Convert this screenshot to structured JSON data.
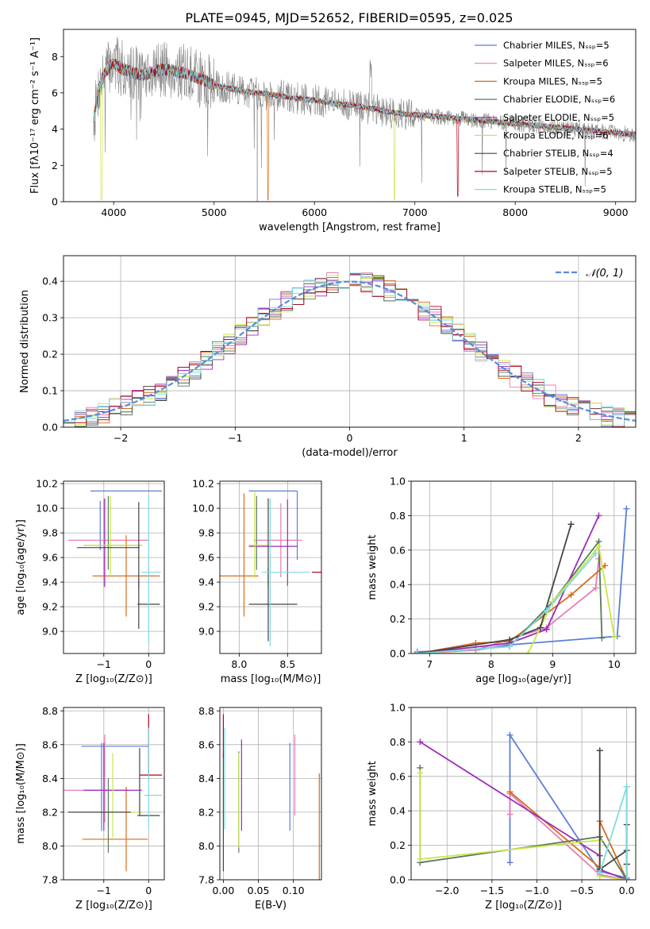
{
  "figure_title": "PLATE=0945, MJD=52652, FIBERID=0595, z=0.025",
  "colors": {
    "chabrier_miles": "#5b7fd9",
    "salpeter_miles": "#e67eb7",
    "kroupa_miles": "#d96b19",
    "chabrier_elodie": "#5a7a5a",
    "salpeter_elodie": "#9a2db8",
    "kroupa_elodie": "#c8e64a",
    "chabrier_stelib": "#444444",
    "salpeter_stelib": "#b3001b",
    "kroupa_stelib": "#7fdde0",
    "data_gray": "#888888",
    "normal_curve": "#5b8bd9",
    "grid": "#b0b0b0"
  },
  "chart_data": [
    {
      "id": "spectrum",
      "type": "line",
      "xlabel": "wavelength [Angstrom, rest frame]",
      "ylabel": "Flux [fλ10⁻¹⁷ erg cm⁻² s⁻¹ A⁻¹]",
      "xlim": [
        3500,
        9200
      ],
      "ylim": [
        0,
        9.5
      ],
      "xticks": [
        4000,
        5000,
        6000,
        7000,
        8000,
        9000
      ],
      "yticks": [
        0,
        2,
        4,
        6,
        8
      ],
      "grid": false,
      "legend_position": "top-right",
      "continuum": {
        "x": [
          3800,
          3850,
          3900,
          3950,
          4000,
          4100,
          4200,
          4300,
          4400,
          4500,
          4600,
          4700,
          4800,
          4900,
          5000,
          5200,
          5400,
          5600,
          5800,
          6000,
          6200,
          6400,
          6600,
          6800,
          7000,
          7200,
          7400,
          7600,
          7800,
          8000,
          8200,
          8400,
          8600,
          8800,
          9000,
          9200
        ],
        "y": [
          4.5,
          6.2,
          7.0,
          7.4,
          7.6,
          7.3,
          7.1,
          7.0,
          7.2,
          7.3,
          7.2,
          7.1,
          6.9,
          6.7,
          6.4,
          6.2,
          6.0,
          5.9,
          5.7,
          5.6,
          5.4,
          5.3,
          5.1,
          4.9,
          4.8,
          4.7,
          4.6,
          4.5,
          4.4,
          4.3,
          4.2,
          4.1,
          4.0,
          3.9,
          3.8,
          3.7
        ]
      },
      "series": [
        {
          "name": "Chabrier MILES, Nₛₛₚ=5",
          "color_key": "chabrier_miles"
        },
        {
          "name": "Salpeter MILES, Nₛₛₚ=6",
          "color_key": "salpeter_miles"
        },
        {
          "name": "Kroupa MILES, Nₛₛₚ=5",
          "color_key": "kroupa_miles"
        },
        {
          "name": "Chabrier ELODIE, Nₛₛₚ=6",
          "color_key": "chabrier_elodie"
        },
        {
          "name": "Salpeter ELODIE, Nₛₛₚ=5",
          "color_key": "salpeter_elodie"
        },
        {
          "name": "Kroupa ELODIE, Nₛₛₚ=6",
          "color_key": "kroupa_elodie"
        },
        {
          "name": "Chabrier STELIB, Nₛₛₚ=4",
          "color_key": "chabrier_stelib"
        },
        {
          "name": "Salpeter STELIB, Nₛₛₚ=5",
          "color_key": "salpeter_stelib"
        },
        {
          "name": "Kroupa STELIB, Nₛₛₚ=5",
          "color_key": "kroupa_stelib"
        }
      ]
    },
    {
      "id": "residuals",
      "type": "line",
      "xlabel": "(data-model)/error",
      "ylabel": "Normed distribution",
      "xlim": [
        -2.5,
        2.5
      ],
      "ylim": [
        0,
        0.47
      ],
      "xticks": [
        -2,
        -1,
        0,
        1,
        2
      ],
      "yticks": [
        0.0,
        0.1,
        0.2,
        0.3,
        0.4
      ],
      "grid": true,
      "legend_position": "top-right",
      "normal_label": "𝒩(0, 1)",
      "bin_width": 0.1
    },
    {
      "id": "age_vs_z",
      "type": "scatter",
      "xlabel": "Z [log₁₀(Z/Z⊙)]",
      "ylabel": "age  [log₁₀(age/yr)]",
      "xlim": [
        -1.9,
        0.35
      ],
      "ylim": [
        8.82,
        10.22
      ],
      "xticks": [
        -1,
        0
      ],
      "yticks": [
        9.0,
        9.2,
        9.4,
        9.6,
        9.8,
        10.0,
        10.2
      ],
      "grid": true,
      "points": [
        {
          "color_key": "chabrier_miles",
          "x": -0.5,
          "xerr": 0.8,
          "y": 10.14,
          "yerr": 0.0
        },
        {
          "color_key": "chabrier_miles",
          "x": -1.08,
          "xerr": 0.0,
          "y": 9.86,
          "yerr": 0.2
        },
        {
          "color_key": "salpeter_miles",
          "x": -0.9,
          "xerr": 0.9,
          "y": 9.74,
          "yerr": 0.0
        },
        {
          "color_key": "salpeter_miles",
          "x": -1.0,
          "xerr": 0.0,
          "y": 9.72,
          "yerr": 0.35
        },
        {
          "color_key": "kroupa_miles",
          "x": -0.5,
          "xerr": 0.75,
          "y": 9.45,
          "yerr": 0.0
        },
        {
          "color_key": "kroupa_miles",
          "x": -0.5,
          "xerr": 0.0,
          "y": 9.45,
          "yerr": 0.33
        },
        {
          "color_key": "chabrier_elodie",
          "x": -0.9,
          "xerr": 0.0,
          "y": 9.8,
          "yerr": 0.3
        },
        {
          "color_key": "salpeter_elodie",
          "x": -0.98,
          "xerr": 0.0,
          "y": 9.72,
          "yerr": 0.36
        },
        {
          "color_key": "salpeter_elodie",
          "x": -0.8,
          "xerr": 0.65,
          "y": 9.7,
          "yerr": 0.0
        },
        {
          "color_key": "kroupa_elodie",
          "x": -0.85,
          "xerr": 0.0,
          "y": 9.78,
          "yerr": 0.32
        },
        {
          "color_key": "kroupa_elodie",
          "x": -0.8,
          "xerr": 0.65,
          "y": 9.7,
          "yerr": 0.0
        },
        {
          "color_key": "chabrier_stelib",
          "x": -0.22,
          "xerr": 0.0,
          "y": 9.7,
          "yerr": 0.35
        },
        {
          "color_key": "chabrier_stelib",
          "x": -0.9,
          "xerr": 0.7,
          "y": 9.68,
          "yerr": 0.0
        },
        {
          "color_key": "chabrier_stelib",
          "x": 0.0,
          "xerr": 0.25,
          "y": 9.22,
          "yerr": 0.0
        },
        {
          "color_key": "chabrier_stelib",
          "x": -0.22,
          "xerr": 0.0,
          "y": 9.22,
          "yerr": 0.2
        },
        {
          "color_key": "kroupa_stelib",
          "x": 0.0,
          "xerr": 0.0,
          "y": 9.5,
          "yerr": 0.6
        },
        {
          "color_key": "kroupa_stelib",
          "x": 0.05,
          "xerr": 0.22,
          "y": 9.48,
          "yerr": 0.0
        }
      ]
    },
    {
      "id": "age_vs_mass",
      "type": "scatter",
      "xlabel": "mass [log₁₀(M/M⊙)]",
      "ylabel": "",
      "xlim": [
        7.8,
        8.85
      ],
      "ylim": [
        8.82,
        10.22
      ],
      "xticks": [
        8.0,
        8.5
      ],
      "yticks": [
        9.0,
        9.2,
        9.4,
        9.6,
        9.8,
        10.0,
        10.2
      ],
      "grid": true,
      "points": [
        {
          "color_key": "chabrier_miles",
          "x": 8.35,
          "xerr": 0.25,
          "y": 10.14,
          "yerr": 0.0
        },
        {
          "color_key": "chabrier_miles",
          "x": 8.6,
          "xerr": 0.0,
          "y": 9.86,
          "yerr": 0.28
        },
        {
          "color_key": "salpeter_miles",
          "x": 8.4,
          "xerr": 0.25,
          "y": 9.74,
          "yerr": 0.0
        },
        {
          "color_key": "salpeter_miles",
          "x": 8.43,
          "xerr": 0.0,
          "y": 9.74,
          "yerr": 0.3
        },
        {
          "color_key": "kroupa_miles",
          "x": 8.0,
          "xerr": 0.2,
          "y": 9.45,
          "yerr": 0.0
        },
        {
          "color_key": "kroupa_miles",
          "x": 8.05,
          "xerr": 0.0,
          "y": 9.62,
          "yerr": 0.5
        },
        {
          "color_key": "chabrier_elodie",
          "x": 8.18,
          "xerr": 0.0,
          "y": 9.8,
          "yerr": 0.3
        },
        {
          "color_key": "salpeter_elodie",
          "x": 8.5,
          "xerr": 0.0,
          "y": 9.72,
          "yerr": 0.35
        },
        {
          "color_key": "salpeter_elodie",
          "x": 8.35,
          "xerr": 0.25,
          "y": 9.69,
          "yerr": 0.0
        },
        {
          "color_key": "kroupa_elodie",
          "x": 8.16,
          "xerr": 0.0,
          "y": 9.78,
          "yerr": 0.35
        },
        {
          "color_key": "kroupa_elodie",
          "x": 8.2,
          "xerr": 0.1,
          "y": 9.7,
          "yerr": 0.0
        },
        {
          "color_key": "chabrier_stelib",
          "x": 8.3,
          "xerr": 0.0,
          "y": 9.72,
          "yerr": 0.36
        },
        {
          "color_key": "chabrier_stelib",
          "x": 8.35,
          "xerr": 0.25,
          "y": 9.22,
          "yerr": 0.0
        },
        {
          "color_key": "chabrier_stelib",
          "x": 8.3,
          "xerr": 0.0,
          "y": 9.22,
          "yerr": 0.3
        },
        {
          "color_key": "salpeter_stelib",
          "x": 8.8,
          "xerr": 0.05,
          "y": 9.48,
          "yerr": 0.0
        },
        {
          "color_key": "kroupa_stelib",
          "x": 8.48,
          "xerr": 0.25,
          "y": 9.48,
          "yerr": 0.0
        },
        {
          "color_key": "kroupa_stelib",
          "x": 8.32,
          "xerr": 0.0,
          "y": 9.48,
          "yerr": 0.6
        }
      ]
    },
    {
      "id": "weight_vs_age",
      "type": "line",
      "xlabel": "age  [log₁₀(age/yr)]",
      "ylabel": "mass weight",
      "xlim": [
        6.7,
        10.35
      ],
      "ylim": [
        0.0,
        1.0
      ],
      "xticks": [
        7,
        8,
        9,
        10
      ],
      "yticks": [
        0.0,
        0.2,
        0.4,
        0.6,
        0.8,
        1.0
      ],
      "grid": true,
      "series": [
        {
          "color_key": "chabrier_miles",
          "x": [
            6.8,
            7.75,
            8.3,
            10.05,
            10.2
          ],
          "y": [
            0.01,
            0.02,
            0.05,
            0.1,
            0.84
          ]
        },
        {
          "color_key": "salpeter_miles",
          "x": [
            6.8,
            7.75,
            8.9,
            9.7,
            9.75
          ],
          "y": [
            0.0,
            0.02,
            0.15,
            0.38,
            0.55
          ]
        },
        {
          "color_key": "kroupa_miles",
          "x": [
            6.8,
            7.75,
            8.3,
            9.3,
            9.85
          ],
          "y": [
            0.0,
            0.06,
            0.07,
            0.34,
            0.51
          ]
        },
        {
          "color_key": "chabrier_elodie",
          "x": [
            6.8,
            8.3,
            9.0,
            9.75,
            9.8
          ],
          "y": [
            0.0,
            0.04,
            0.3,
            0.65,
            0.09
          ]
        },
        {
          "color_key": "salpeter_elodie",
          "x": [
            6.8,
            8.3,
            8.9,
            9.75
          ],
          "y": [
            0.0,
            0.06,
            0.14,
            0.8
          ]
        },
        {
          "color_key": "kroupa_elodie",
          "x": [
            6.8,
            8.6,
            9.0,
            9.75,
            10.0
          ],
          "y": [
            0.0,
            0.0,
            0.3,
            0.62,
            0.1
          ]
        },
        {
          "color_key": "chabrier_stelib",
          "x": [
            6.8,
            8.3,
            8.8,
            9.3
          ],
          "y": [
            0.0,
            0.08,
            0.15,
            0.75
          ]
        },
        {
          "color_key": "kroupa_stelib",
          "x": [
            6.8,
            8.3,
            8.9,
            9.7
          ],
          "y": [
            0.0,
            0.04,
            0.25,
            0.58
          ]
        }
      ]
    },
    {
      "id": "mass_vs_z",
      "type": "scatter",
      "xlabel": "Z [log₁₀(Z/Z⊙)]",
      "ylabel": "mass [log₁₀(M/M⊙)]",
      "xlim": [
        -1.9,
        0.35
      ],
      "ylim": [
        7.8,
        8.82
      ],
      "xticks": [
        -1,
        0
      ],
      "yticks": [
        7.8,
        8.0,
        8.2,
        8.4,
        8.6,
        8.8
      ],
      "grid": true,
      "points": [
        {
          "color_key": "chabrier_miles",
          "x": -0.75,
          "xerr": 0.75,
          "y": 8.59,
          "yerr": 0.0
        },
        {
          "color_key": "chabrier_miles",
          "x": -1.05,
          "xerr": 0.0,
          "y": 8.35,
          "yerr": 0.26
        },
        {
          "color_key": "salpeter_miles",
          "x": -1.2,
          "xerr": 0.75,
          "y": 8.33,
          "yerr": 0.0
        },
        {
          "color_key": "salpeter_miles",
          "x": -0.98,
          "xerr": 0.0,
          "y": 8.4,
          "yerr": 0.26
        },
        {
          "color_key": "kroupa_miles",
          "x": -0.75,
          "xerr": 0.73,
          "y": 8.04,
          "yerr": 0.0
        },
        {
          "color_key": "kroupa_miles",
          "x": -0.5,
          "xerr": 0.0,
          "y": 8.1,
          "yerr": 0.25
        },
        {
          "color_key": "chabrier_elodie",
          "x": -0.9,
          "xerr": 0.0,
          "y": 8.18,
          "yerr": 0.22
        },
        {
          "color_key": "salpeter_elodie",
          "x": -1.0,
          "xerr": 0.0,
          "y": 8.35,
          "yerr": 0.26
        },
        {
          "color_key": "salpeter_elodie",
          "x": -0.8,
          "xerr": 0.65,
          "y": 8.33,
          "yerr": 0.0
        },
        {
          "color_key": "kroupa_elodie",
          "x": -0.8,
          "xerr": 0.0,
          "y": 8.3,
          "yerr": 0.25
        },
        {
          "color_key": "kroupa_elodie",
          "x": -0.8,
          "xerr": 0.65,
          "y": 8.2,
          "yerr": 0.0
        },
        {
          "color_key": "chabrier_stelib",
          "x": -0.2,
          "xerr": 0.0,
          "y": 8.38,
          "yerr": 0.2
        },
        {
          "color_key": "chabrier_stelib",
          "x": -1.1,
          "xerr": 0.7,
          "y": 8.2,
          "yerr": 0.0
        },
        {
          "color_key": "chabrier_stelib",
          "x": 0.0,
          "xerr": 0.25,
          "y": 8.18,
          "yerr": 0.0
        },
        {
          "color_key": "salpeter_stelib",
          "x": 0.0,
          "xerr": 0.0,
          "y": 8.6,
          "yerr": 0.18
        },
        {
          "color_key": "salpeter_stelib",
          "x": 0.05,
          "xerr": 0.25,
          "y": 8.42,
          "yerr": 0.0
        },
        {
          "color_key": "kroupa_stelib",
          "x": 0.0,
          "xerr": 0.0,
          "y": 8.4,
          "yerr": 0.3
        },
        {
          "color_key": "kroupa_stelib",
          "x": 0.1,
          "xerr": 0.2,
          "y": 8.3,
          "yerr": 0.0
        }
      ]
    },
    {
      "id": "mass_vs_ebv",
      "type": "scatter",
      "xlabel": "E(B-V)",
      "ylabel": "",
      "xlim": [
        -0.005,
        0.14
      ],
      "ylim": [
        7.8,
        8.82
      ],
      "xticks": [
        0.0,
        0.05,
        0.1
      ],
      "yticks": [
        7.8,
        8.0,
        8.2,
        8.4,
        8.6,
        8.8
      ],
      "grid": true,
      "points": [
        {
          "color_key": "chabrier_miles",
          "x": 0.095,
          "xerr": 0.0,
          "y": 8.35,
          "yerr": 0.26
        },
        {
          "color_key": "salpeter_miles",
          "x": 0.102,
          "xerr": 0.0,
          "y": 8.42,
          "yerr": 0.24
        },
        {
          "color_key": "kroupa_miles",
          "x": 0.137,
          "xerr": 0.0,
          "y": 8.1,
          "yerr": 0.33
        },
        {
          "color_key": "chabrier_elodie",
          "x": 0.022,
          "xerr": 0.0,
          "y": 8.26,
          "yerr": 0.3
        },
        {
          "color_key": "salpeter_elodie",
          "x": 0.026,
          "xerr": 0.0,
          "y": 8.36,
          "yerr": 0.27
        },
        {
          "color_key": "kroupa_elodie",
          "x": 0.022,
          "xerr": 0.0,
          "y": 8.27,
          "yerr": 0.28
        },
        {
          "color_key": "chabrier_stelib",
          "x": 0.0,
          "xerr": 0.0,
          "y": 8.2,
          "yerr": 0.35
        },
        {
          "color_key": "salpeter_stelib",
          "x": 0.0,
          "xerr": 0.0,
          "y": 8.65,
          "yerr": 0.13
        },
        {
          "color_key": "kroupa_stelib",
          "x": 0.002,
          "xerr": 0.0,
          "y": 8.4,
          "yerr": 0.3
        }
      ]
    },
    {
      "id": "weight_vs_z",
      "type": "line",
      "xlabel": "Z [log₁₀(Z/Z⊙)]",
      "ylabel": "mass weight",
      "xlim": [
        -2.4,
        0.1
      ],
      "ylim": [
        0.0,
        1.0
      ],
      "xticks": [
        -2.0,
        -1.5,
        -1.0,
        -0.5,
        0.0
      ],
      "yticks": [
        0.0,
        0.2,
        0.4,
        0.6,
        0.8,
        1.0
      ],
      "grid": true,
      "series": [
        {
          "color_key": "chabrier_miles",
          "x": [
            -1.3,
            -1.3,
            -0.3,
            0.0,
            0.0
          ],
          "y": [
            0.1,
            0.84,
            0.05,
            0.01,
            0.54
          ]
        },
        {
          "color_key": "salpeter_miles",
          "x": [
            -1.3,
            -1.3,
            -0.3,
            0.0
          ],
          "y": [
            0.38,
            0.5,
            0.03,
            0.0
          ]
        },
        {
          "color_key": "kroupa_miles",
          "x": [
            -1.3,
            -0.3,
            -0.3,
            0.0
          ],
          "y": [
            0.51,
            0.07,
            0.34,
            0.0
          ]
        },
        {
          "color_key": "chabrier_elodie",
          "x": [
            -2.3,
            -2.3,
            -0.3,
            0.0,
            0.0
          ],
          "y": [
            0.65,
            0.1,
            0.25,
            0.0,
            0.09
          ]
        },
        {
          "color_key": "salpeter_elodie",
          "x": [
            -2.3,
            -0.3,
            -0.3,
            0.0
          ],
          "y": [
            0.8,
            0.14,
            0.06,
            0.0
          ]
        },
        {
          "color_key": "kroupa_elodie",
          "x": [
            -2.3,
            -2.3,
            -0.3,
            -0.3,
            0.0
          ],
          "y": [
            0.62,
            0.12,
            0.23,
            0.02,
            0.0
          ]
        },
        {
          "color_key": "chabrier_stelib",
          "x": [
            -0.3,
            -0.3,
            0.0,
            0.0,
            0.0
          ],
          "y": [
            0.75,
            0.06,
            0.17,
            0.32,
            0.09
          ]
        },
        {
          "color_key": "kroupa_stelib",
          "x": [
            -0.3,
            0.0,
            0.0
          ],
          "y": [
            0.04,
            0.54,
            0.0
          ]
        }
      ]
    }
  ]
}
